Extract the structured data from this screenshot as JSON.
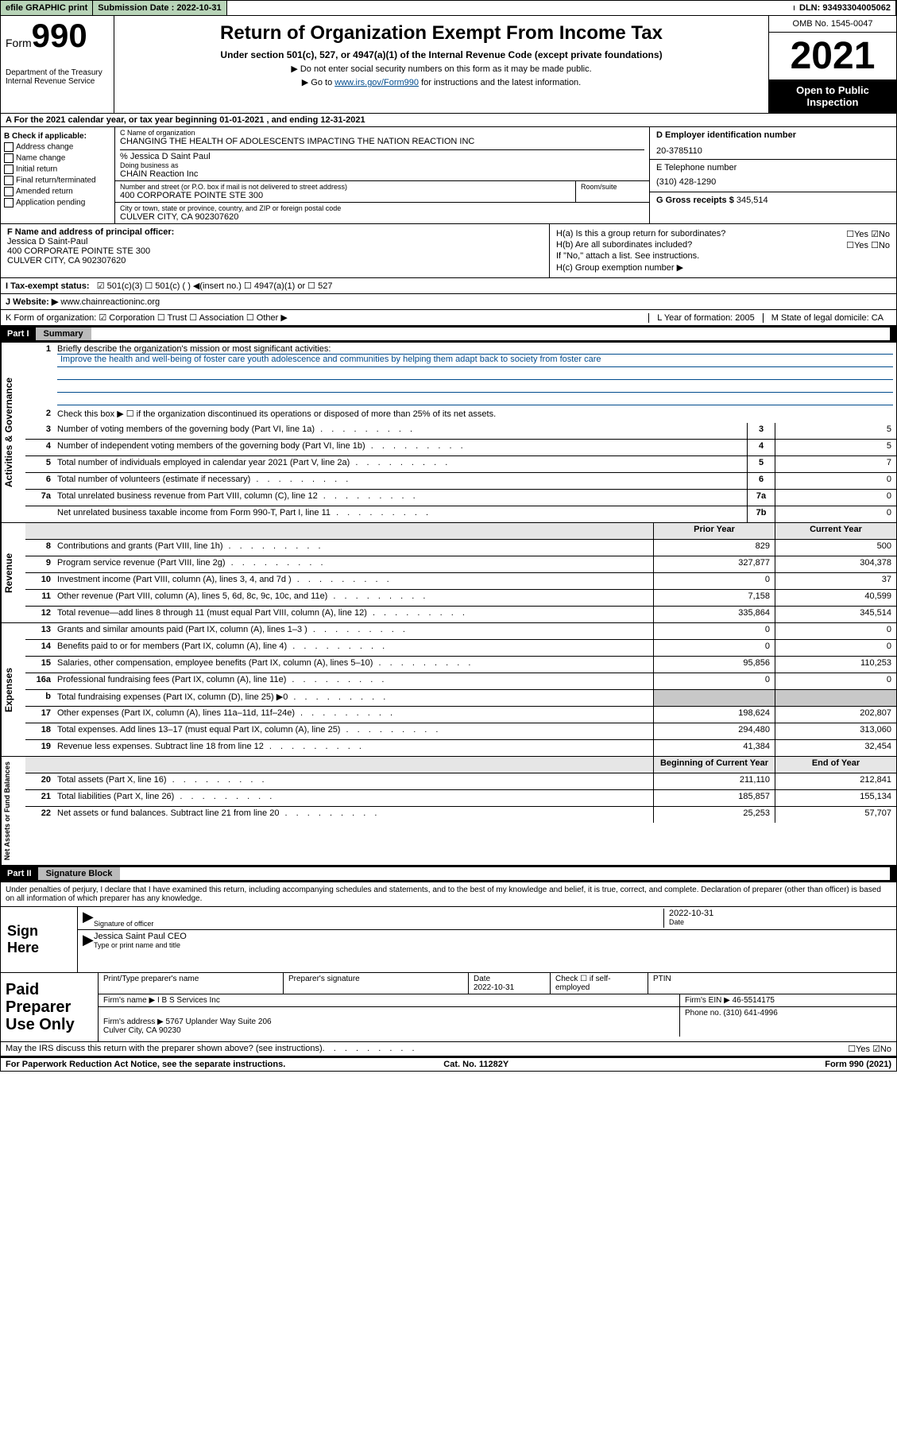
{
  "topbar": {
    "efile": "efile GRAPHIC print",
    "sub_label": "Submission Date : 2022-10-31",
    "dln": "DLN: 93493304005062"
  },
  "header": {
    "form_word": "Form",
    "form_num": "990",
    "dept": "Department of the Treasury",
    "irs": "Internal Revenue Service",
    "title": "Return of Organization Exempt From Income Tax",
    "sub": "Under section 501(c), 527, or 4947(a)(1) of the Internal Revenue Code (except private foundations)",
    "note1": "▶ Do not enter social security numbers on this form as it may be made public.",
    "note2_a": "▶ Go to ",
    "note2_link": "www.irs.gov/Form990",
    "note2_b": " for instructions and the latest information.",
    "omb": "OMB No. 1545-0047",
    "year": "2021",
    "inspection": "Open to Public Inspection"
  },
  "rowA": "A For the 2021 calendar year, or tax year beginning 01-01-2021   , and ending 12-31-2021",
  "colB": {
    "head": "B Check if applicable:",
    "items": [
      "Address change",
      "Name change",
      "Initial return",
      "Final return/terminated",
      "Amended return",
      "Application pending"
    ]
  },
  "c": {
    "name_label": "C Name of organization",
    "name": "CHANGING THE HEALTH OF ADOLESCENTS IMPACTING THE NATION REACTION INC",
    "care": "% Jessica D Saint Paul",
    "dba_label": "Doing business as",
    "dba": "CHAIN Reaction Inc",
    "addr_label": "Number and street (or P.O. box if mail is not delivered to street address)",
    "addr": "400 CORPORATE POINTE STE 300",
    "room_label": "Room/suite",
    "city_label": "City or town, state or province, country, and ZIP or foreign postal code",
    "city": "CULVER CITY, CA  902307620"
  },
  "d": {
    "ein_label": "D Employer identification number",
    "ein": "20-3785110",
    "phone_label": "E Telephone number",
    "phone": "(310) 428-1290",
    "gross_label": "G Gross receipts $",
    "gross": "345,514"
  },
  "f": {
    "label": "F Name and address of principal officer:",
    "name": "Jessica D Saint-Paul",
    "addr1": "400 CORPORATE POINTE STE 300",
    "addr2": "CULVER CITY, CA  902307620"
  },
  "h": {
    "a": "H(a)  Is this a group return for subordinates?",
    "a_ans": "☐Yes ☑No",
    "b": "H(b)  Are all subordinates included?",
    "b_ans": "☐Yes ☐No",
    "b_note": "If \"No,\" attach a list. See instructions.",
    "c": "H(c)  Group exemption number ▶"
  },
  "i": {
    "label": "I   Tax-exempt status:",
    "opts": "☑ 501(c)(3)   ☐ 501(c) (  ) ◀(insert no.)   ☐ 4947(a)(1) or  ☐ 527"
  },
  "j": {
    "label": "J   Website: ▶",
    "val": "www.chainreactioninc.org"
  },
  "k": {
    "label": "K Form of organization:  ☑ Corporation  ☐ Trust  ☐ Association  ☐ Other ▶",
    "l": "L Year of formation: 2005",
    "m": "M State of legal domicile: CA"
  },
  "part1": {
    "label": "Part I",
    "title": "Summary"
  },
  "summary": {
    "q1": "Briefly describe the organization's mission or most significant activities:",
    "mission": "Improve the health and well-being of foster care youth adolescence and communities by helping them adapt back to society from foster care",
    "q2": "Check this box ▶ ☐  if the organization discontinued its operations or disposed of more than 25% of its net assets.",
    "lines_gov": [
      {
        "n": "3",
        "t": "Number of voting members of the governing body (Part VI, line 1a)",
        "box": "3",
        "v": "5"
      },
      {
        "n": "4",
        "t": "Number of independent voting members of the governing body (Part VI, line 1b)",
        "box": "4",
        "v": "5"
      },
      {
        "n": "5",
        "t": "Total number of individuals employed in calendar year 2021 (Part V, line 2a)",
        "box": "5",
        "v": "7"
      },
      {
        "n": "6",
        "t": "Total number of volunteers (estimate if necessary)",
        "box": "6",
        "v": "0"
      },
      {
        "n": "7a",
        "t": "Total unrelated business revenue from Part VIII, column (C), line 12",
        "box": "7a",
        "v": "0"
      },
      {
        "n": "",
        "t": "Net unrelated business taxable income from Form 990-T, Part I, line 11",
        "box": "7b",
        "v": "0"
      }
    ],
    "col_prior": "Prior Year",
    "col_curr": "Current Year",
    "rev": [
      {
        "n": "8",
        "t": "Contributions and grants (Part VIII, line 1h)",
        "p": "829",
        "c": "500"
      },
      {
        "n": "9",
        "t": "Program service revenue (Part VIII, line 2g)",
        "p": "327,877",
        "c": "304,378"
      },
      {
        "n": "10",
        "t": "Investment income (Part VIII, column (A), lines 3, 4, and 7d )",
        "p": "0",
        "c": "37"
      },
      {
        "n": "11",
        "t": "Other revenue (Part VIII, column (A), lines 5, 6d, 8c, 9c, 10c, and 11e)",
        "p": "7,158",
        "c": "40,599"
      },
      {
        "n": "12",
        "t": "Total revenue—add lines 8 through 11 (must equal Part VIII, column (A), line 12)",
        "p": "335,864",
        "c": "345,514"
      }
    ],
    "exp": [
      {
        "n": "13",
        "t": "Grants and similar amounts paid (Part IX, column (A), lines 1–3 )",
        "p": "0",
        "c": "0"
      },
      {
        "n": "14",
        "t": "Benefits paid to or for members (Part IX, column (A), line 4)",
        "p": "0",
        "c": "0"
      },
      {
        "n": "15",
        "t": "Salaries, other compensation, employee benefits (Part IX, column (A), lines 5–10)",
        "p": "95,856",
        "c": "110,253"
      },
      {
        "n": "16a",
        "t": "Professional fundraising fees (Part IX, column (A), line 11e)",
        "p": "0",
        "c": "0"
      },
      {
        "n": "b",
        "t": "Total fundraising expenses (Part IX, column (D), line 25) ▶0",
        "p": "",
        "c": "",
        "gray": true
      },
      {
        "n": "17",
        "t": "Other expenses (Part IX, column (A), lines 11a–11d, 11f–24e)",
        "p": "198,624",
        "c": "202,807"
      },
      {
        "n": "18",
        "t": "Total expenses. Add lines 13–17 (must equal Part IX, column (A), line 25)",
        "p": "294,480",
        "c": "313,060"
      },
      {
        "n": "19",
        "t": "Revenue less expenses. Subtract line 18 from line 12",
        "p": "41,384",
        "c": "32,454"
      }
    ],
    "col_begin": "Beginning of Current Year",
    "col_end": "End of Year",
    "net": [
      {
        "n": "20",
        "t": "Total assets (Part X, line 16)",
        "p": "211,110",
        "c": "212,841"
      },
      {
        "n": "21",
        "t": "Total liabilities (Part X, line 26)",
        "p": "185,857",
        "c": "155,134"
      },
      {
        "n": "22",
        "t": "Net assets or fund balances. Subtract line 21 from line 20",
        "p": "25,253",
        "c": "57,707"
      }
    ],
    "vtabs": [
      "Activities & Governance",
      "Revenue",
      "Expenses",
      "Net Assets or Fund Balances"
    ]
  },
  "part2": {
    "label": "Part II",
    "title": "Signature Block"
  },
  "sig": {
    "intro": "Under penalties of perjury, I declare that I have examined this return, including accompanying schedules and statements, and to the best of my knowledge and belief, it is true, correct, and complete. Declaration of preparer (other than officer) is based on all information of which preparer has any knowledge.",
    "here": "Sign Here",
    "sig_label": "Signature of officer",
    "date": "2022-10-31",
    "date_label": "Date",
    "name": "Jessica Saint Paul CEO",
    "name_label": "Type or print name and title"
  },
  "prep": {
    "left": "Paid Preparer Use Only",
    "h1": "Print/Type preparer's name",
    "h2": "Preparer's signature",
    "h3": "Date",
    "h3v": "2022-10-31",
    "h4": "Check ☐ if self-employed",
    "h5": "PTIN",
    "firm_label": "Firm's name    ▶",
    "firm": "I B S Services Inc",
    "ein_label": "Firm's EIN ▶",
    "ein": "46-5514175",
    "addr_label": "Firm's address ▶",
    "addr": "5767 Uplander Way Suite 206\nCulver City, CA  90230",
    "phone_label": "Phone no.",
    "phone": "(310) 641-4996"
  },
  "footer": {
    "discuss": "May the IRS discuss this return with the preparer shown above? (see instructions)",
    "discuss_ans": "☐Yes ☑No",
    "pra": "For Paperwork Reduction Act Notice, see the separate instructions.",
    "cat": "Cat. No. 11282Y",
    "form": "Form 990 (2021)"
  }
}
